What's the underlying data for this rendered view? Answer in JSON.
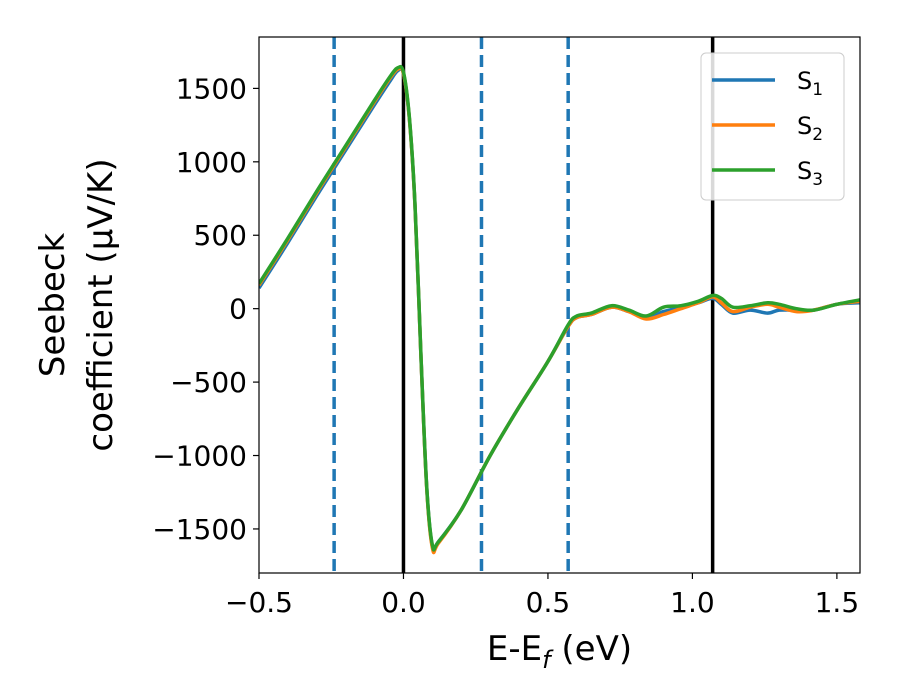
{
  "chart_data": {
    "type": "line",
    "xlabel": {
      "main": "E-E",
      "sub": "f",
      "unit": " (eV)"
    },
    "ylabel": {
      "line1": "Seebeck",
      "line2": "coefficient  (μV/K)"
    },
    "xlim": [
      -0.5,
      1.58
    ],
    "ylim": [
      -1800,
      1850
    ],
    "xticks": [
      {
        "value": -0.5,
        "label": "−0.5"
      },
      {
        "value": 0.0,
        "label": "0.0"
      },
      {
        "value": 0.5,
        "label": "0.5"
      },
      {
        "value": 1.0,
        "label": "1.0"
      },
      {
        "value": 1.5,
        "label": "1.5"
      }
    ],
    "yticks": [
      {
        "value": 1500,
        "label": "1500"
      },
      {
        "value": 1000,
        "label": "1000"
      },
      {
        "value": 500,
        "label": "500"
      },
      {
        "value": 0,
        "label": "0"
      },
      {
        "value": -500,
        "label": "−500"
      },
      {
        "value": -1000,
        "label": "−1000"
      },
      {
        "value": -1500,
        "label": "−1500"
      }
    ],
    "grid": false,
    "legend_position": "top-right",
    "vlines_solid": [
      0.0,
      1.07
    ],
    "vlines_dashed": [
      -0.24,
      0.27,
      0.57
    ],
    "vline_solid_color": "#000000",
    "vline_dashed_color": "#1f77b4",
    "series": [
      {
        "name": "S",
        "sub": "1",
        "color": "#1f77b4",
        "points": [
          [
            -0.5,
            140
          ],
          [
            -0.4,
            450
          ],
          [
            -0.3,
            770
          ],
          [
            -0.2,
            1080
          ],
          [
            -0.1,
            1390
          ],
          [
            -0.05,
            1540
          ],
          [
            -0.02,
            1620
          ],
          [
            0.0,
            1600
          ],
          [
            0.02,
            1300
          ],
          [
            0.04,
            700
          ],
          [
            0.06,
            -300
          ],
          [
            0.08,
            -1200
          ],
          [
            0.1,
            -1620
          ],
          [
            0.12,
            -1590
          ],
          [
            0.2,
            -1370
          ],
          [
            0.3,
            -1000
          ],
          [
            0.4,
            -670
          ],
          [
            0.5,
            -360
          ],
          [
            0.57,
            -120
          ],
          [
            0.6,
            -60
          ],
          [
            0.65,
            -40
          ],
          [
            0.72,
            10
          ],
          [
            0.78,
            -20
          ],
          [
            0.84,
            -60
          ],
          [
            0.9,
            -20
          ],
          [
            0.96,
            10
          ],
          [
            1.02,
            40
          ],
          [
            1.07,
            70
          ],
          [
            1.1,
            30
          ],
          [
            1.14,
            -30
          ],
          [
            1.2,
            -10
          ],
          [
            1.26,
            -30
          ],
          [
            1.3,
            -10
          ],
          [
            1.36,
            -10
          ],
          [
            1.42,
            -10
          ],
          [
            1.5,
            30
          ],
          [
            1.58,
            40
          ]
        ]
      },
      {
        "name": "S",
        "sub": "2",
        "color": "#ff7f0e",
        "points": [
          [
            -0.5,
            160
          ],
          [
            -0.4,
            470
          ],
          [
            -0.3,
            790
          ],
          [
            -0.2,
            1100
          ],
          [
            -0.1,
            1410
          ],
          [
            -0.05,
            1560
          ],
          [
            -0.02,
            1630
          ],
          [
            0.0,
            1600
          ],
          [
            0.02,
            1300
          ],
          [
            0.04,
            700
          ],
          [
            0.06,
            -300
          ],
          [
            0.08,
            -1210
          ],
          [
            0.1,
            -1630
          ],
          [
            0.12,
            -1600
          ],
          [
            0.2,
            -1370
          ],
          [
            0.3,
            -1000
          ],
          [
            0.4,
            -670
          ],
          [
            0.5,
            -360
          ],
          [
            0.57,
            -120
          ],
          [
            0.6,
            -60
          ],
          [
            0.65,
            -40
          ],
          [
            0.72,
            10
          ],
          [
            0.78,
            -20
          ],
          [
            0.84,
            -70
          ],
          [
            0.9,
            -40
          ],
          [
            0.96,
            0
          ],
          [
            1.02,
            40
          ],
          [
            1.07,
            80
          ],
          [
            1.1,
            40
          ],
          [
            1.14,
            -20
          ],
          [
            1.2,
            10
          ],
          [
            1.26,
            30
          ],
          [
            1.3,
            10
          ],
          [
            1.36,
            -20
          ],
          [
            1.42,
            -10
          ],
          [
            1.5,
            30
          ],
          [
            1.58,
            50
          ]
        ]
      },
      {
        "name": "S",
        "sub": "3",
        "color": "#2ca02c",
        "points": [
          [
            -0.5,
            170
          ],
          [
            -0.4,
            480
          ],
          [
            -0.3,
            800
          ],
          [
            -0.2,
            1110
          ],
          [
            -0.1,
            1420
          ],
          [
            -0.05,
            1570
          ],
          [
            -0.02,
            1640
          ],
          [
            0.0,
            1610
          ],
          [
            0.02,
            1310
          ],
          [
            0.04,
            710
          ],
          [
            0.06,
            -290
          ],
          [
            0.08,
            -1200
          ],
          [
            0.1,
            -1610
          ],
          [
            0.12,
            -1590
          ],
          [
            0.2,
            -1370
          ],
          [
            0.3,
            -1000
          ],
          [
            0.4,
            -670
          ],
          [
            0.5,
            -360
          ],
          [
            0.57,
            -110
          ],
          [
            0.6,
            -50
          ],
          [
            0.65,
            -30
          ],
          [
            0.72,
            20
          ],
          [
            0.78,
            -10
          ],
          [
            0.84,
            -50
          ],
          [
            0.9,
            10
          ],
          [
            0.96,
            20
          ],
          [
            1.02,
            50
          ],
          [
            1.07,
            90
          ],
          [
            1.1,
            70
          ],
          [
            1.14,
            10
          ],
          [
            1.2,
            20
          ],
          [
            1.26,
            40
          ],
          [
            1.3,
            30
          ],
          [
            1.36,
            0
          ],
          [
            1.42,
            -10
          ],
          [
            1.5,
            30
          ],
          [
            1.58,
            60
          ]
        ]
      }
    ]
  }
}
